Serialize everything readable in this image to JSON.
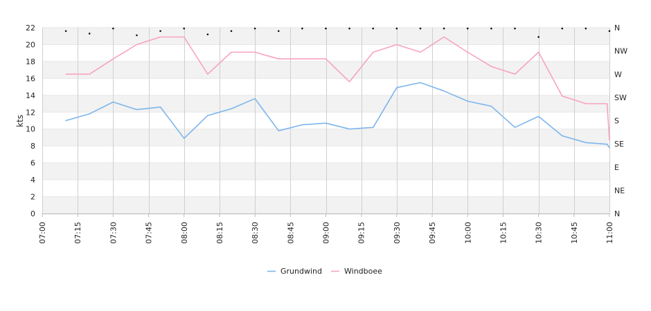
{
  "chart_data": {
    "type": "line",
    "ylabel": "kts",
    "ylim": [
      0,
      22
    ],
    "y_ticks": [
      "0",
      "2",
      "4",
      "6",
      "8",
      "10",
      "12",
      "14",
      "16",
      "18",
      "20",
      "22"
    ],
    "x_range": [
      "07:00",
      "11:00"
    ],
    "x_ticks": [
      "07:00",
      "07:15",
      "07:30",
      "07:45",
      "08:00",
      "08:15",
      "08:30",
      "08:45",
      "09:00",
      "09:15",
      "09:30",
      "09:45",
      "10:00",
      "10:15",
      "10:30",
      "10:45",
      "11:00"
    ],
    "right_axis_labels": [
      "N",
      "NE",
      "E",
      "SE",
      "S",
      "SW",
      "W",
      "NW",
      "N"
    ],
    "grid": true,
    "legend_position": "bottom",
    "series": [
      {
        "name": "Grundwind",
        "color": "#7cb5ec",
        "points": [
          [
            "07:10",
            11.0
          ],
          [
            "07:20",
            11.8
          ],
          [
            "07:30",
            13.2
          ],
          [
            "07:40",
            12.3
          ],
          [
            "07:50",
            12.6
          ],
          [
            "08:00",
            8.9
          ],
          [
            "08:10",
            11.6
          ],
          [
            "08:20",
            12.4
          ],
          [
            "08:30",
            13.6
          ],
          [
            "08:40",
            9.8
          ],
          [
            "08:50",
            10.5
          ],
          [
            "09:00",
            10.7
          ],
          [
            "09:10",
            10.0
          ],
          [
            "09:20",
            10.2
          ],
          [
            "09:30",
            14.9
          ],
          [
            "09:40",
            15.5
          ],
          [
            "09:50",
            14.5
          ],
          [
            "10:00",
            13.3
          ],
          [
            "10:10",
            12.7
          ],
          [
            "10:20",
            10.2
          ],
          [
            "10:30",
            11.5
          ],
          [
            "10:40",
            9.2
          ],
          [
            "10:50",
            8.4
          ],
          [
            "10:59",
            8.2
          ],
          [
            "11:00",
            7.8
          ]
        ]
      },
      {
        "name": "Windboee",
        "color": "#f7a1c4",
        "points": [
          [
            "07:10",
            16.5
          ],
          [
            "07:20",
            16.5
          ],
          [
            "07:30",
            18.3
          ],
          [
            "07:40",
            20.0
          ],
          [
            "07:50",
            20.9
          ],
          [
            "08:00",
            20.9
          ],
          [
            "08:10",
            16.5
          ],
          [
            "08:20",
            19.1
          ],
          [
            "08:30",
            19.1
          ],
          [
            "08:40",
            18.3
          ],
          [
            "08:50",
            18.3
          ],
          [
            "09:00",
            18.3
          ],
          [
            "09:10",
            15.6
          ],
          [
            "09:20",
            19.1
          ],
          [
            "09:30",
            20.0
          ],
          [
            "09:40",
            19.1
          ],
          [
            "09:50",
            20.9
          ],
          [
            "10:00",
            19.1
          ],
          [
            "10:10",
            17.4
          ],
          [
            "10:20",
            16.5
          ],
          [
            "10:30",
            19.1
          ],
          [
            "10:40",
            13.9
          ],
          [
            "10:50",
            13.0
          ],
          [
            "10:59",
            13.0
          ],
          [
            "11:00",
            8.7
          ]
        ]
      }
    ],
    "direction_markers": [
      [
        "07:10",
        21.6
      ],
      [
        "07:20",
        21.3
      ],
      [
        "07:30",
        21.9
      ],
      [
        "07:40",
        21.1
      ],
      [
        "07:50",
        21.6
      ],
      [
        "08:00",
        21.9
      ],
      [
        "08:10",
        21.2
      ],
      [
        "08:20",
        21.6
      ],
      [
        "08:30",
        21.9
      ],
      [
        "08:40",
        21.6
      ],
      [
        "08:50",
        21.9
      ],
      [
        "09:00",
        21.9
      ],
      [
        "09:10",
        21.9
      ],
      [
        "09:20",
        21.9
      ],
      [
        "09:30",
        21.9
      ],
      [
        "09:40",
        21.9
      ],
      [
        "09:50",
        21.9
      ],
      [
        "10:00",
        21.9
      ],
      [
        "10:10",
        21.9
      ],
      [
        "10:20",
        21.9
      ],
      [
        "10:30",
        20.9
      ],
      [
        "10:40",
        21.9
      ],
      [
        "10:50",
        21.9
      ],
      [
        "11:00",
        21.6
      ]
    ]
  }
}
